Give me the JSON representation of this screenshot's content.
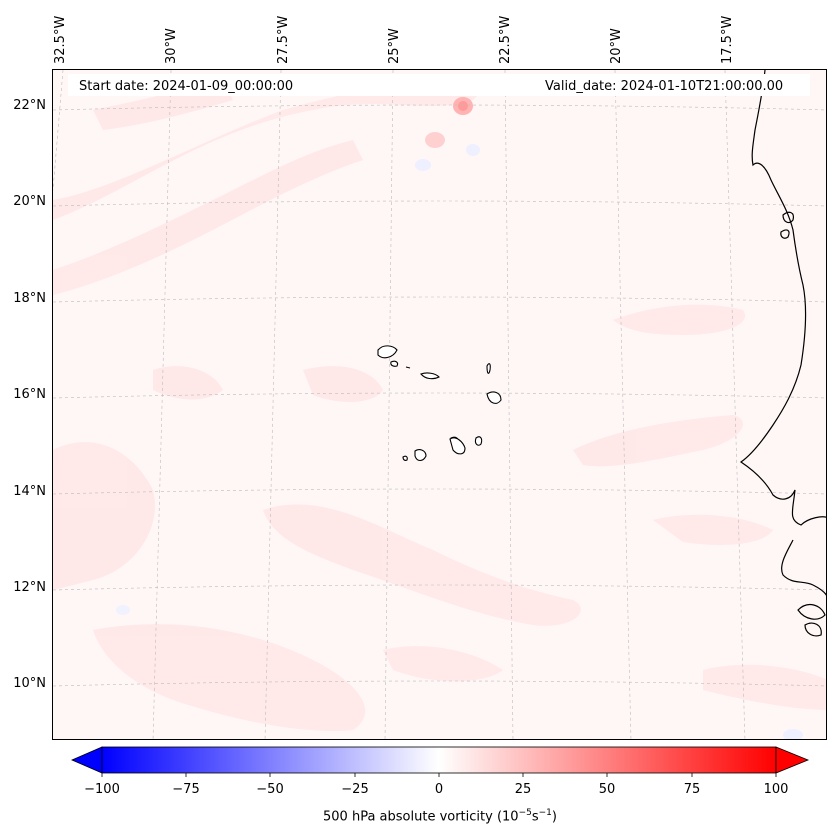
{
  "header": {
    "start_date": "Start date: 2024-01-09_00:00:00",
    "valid_date": "Valid_date: 2024-01-10T21:00:00.00"
  },
  "map": {
    "projection": "lambert-conformal",
    "grid_lines": true,
    "longitude_labels": [
      "32.5°W",
      "30°W",
      "27.5°W",
      "25°W",
      "22.5°W",
      "20°W",
      "17.5°W"
    ],
    "latitude_labels": [
      "22°N",
      "20°N",
      "18°N",
      "16°N",
      "14°N",
      "12°N",
      "10°N"
    ],
    "features": [
      "west-african-coastline",
      "cape-verde-islands"
    ]
  },
  "colorbar": {
    "ticks": [
      "−100",
      "−75",
      "−50",
      "−25",
      "0",
      "25",
      "50",
      "75",
      "100"
    ],
    "label_prefix": "500 hPa absolute vorticity (10",
    "label_exp1": "−5",
    "label_mid": "s",
    "label_exp2": "−1",
    "label_suffix": ")",
    "range": [
      -100,
      100
    ],
    "colormap": "bwr",
    "colors": {
      "low": "#0000ff",
      "mid": "#ffffff",
      "high": "#ff0000"
    }
  }
}
